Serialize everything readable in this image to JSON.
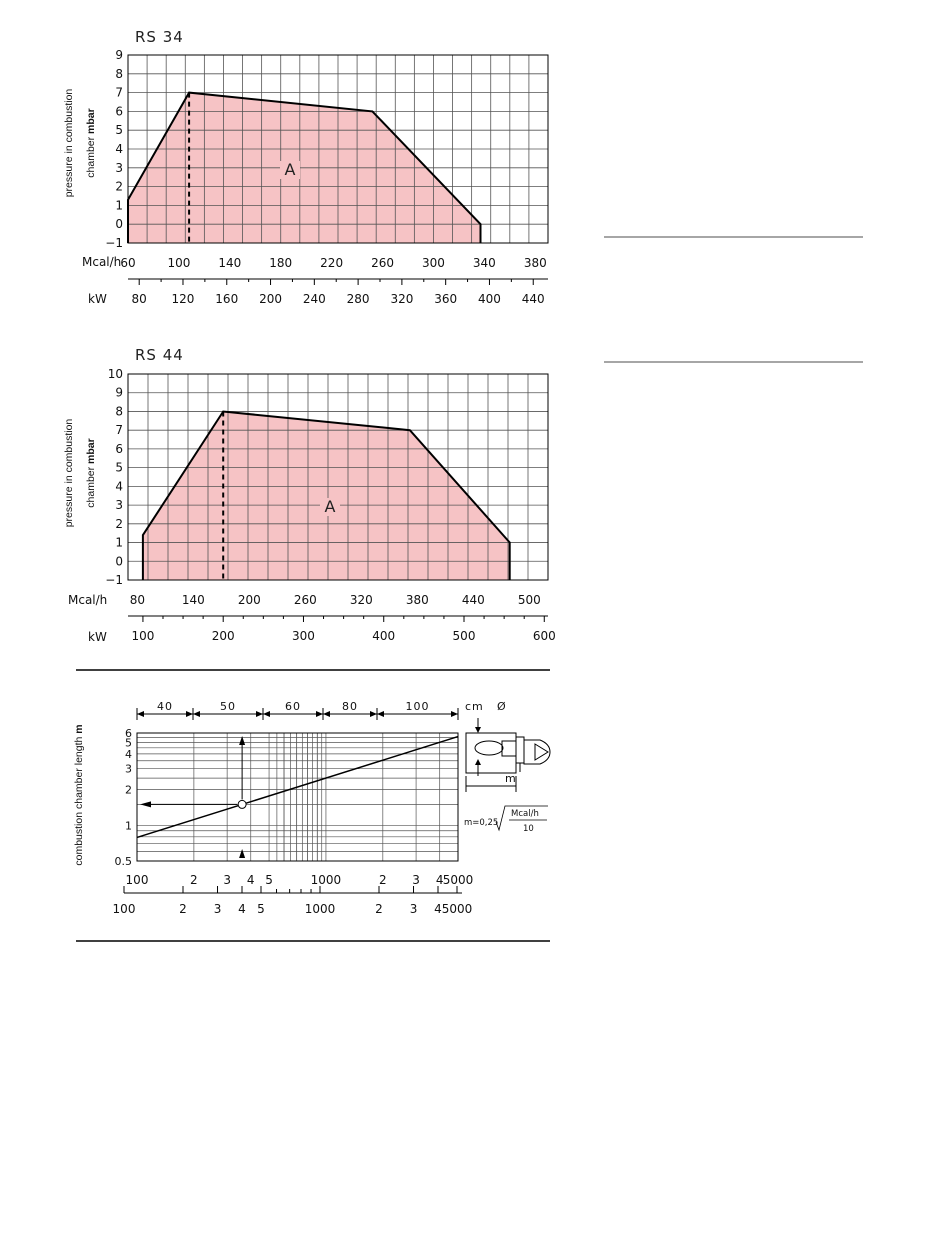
{
  "chart_data": [
    {
      "type": "area",
      "title": "RS 34",
      "ylabel_line1": "pressure in combustion",
      "ylabel_line2_prefix": "chamber ",
      "ylabel_line2_bold": "mbar",
      "xlabel_primary": "Mcal/h",
      "xlabel_secondary": "kW",
      "ylim": [
        -1,
        9
      ],
      "yticks": [
        -1,
        0,
        1,
        2,
        3,
        4,
        5,
        6,
        7,
        8,
        9
      ],
      "xlim_mcal": [
        60,
        390
      ],
      "xticks_mcal": [
        60,
        100,
        140,
        180,
        220,
        260,
        300,
        340,
        380
      ],
      "xticks_kw": [
        80,
        120,
        160,
        200,
        240,
        280,
        320,
        360,
        400,
        440
      ],
      "area_label": "A",
      "polygon_mcal": [
        [
          60,
          -1
        ],
        [
          60,
          1.3
        ],
        [
          108,
          7.0
        ],
        [
          252,
          6.0
        ],
        [
          337,
          0.0
        ],
        [
          337,
          -1
        ]
      ],
      "dashed_x_mcal": 108,
      "grid": true
    },
    {
      "type": "area",
      "title": "RS 44",
      "ylabel_line1": "pressure in combustion",
      "ylabel_line2_prefix": "chamber ",
      "ylabel_line2_bold": "mbar",
      "xlabel_primary": "Mcal/h",
      "xlabel_secondary": "kW",
      "ylim": [
        -1,
        10
      ],
      "yticks": [
        -1,
        0,
        1,
        2,
        3,
        4,
        5,
        6,
        7,
        8,
        9,
        10
      ],
      "xlim_mcal": [
        70,
        520
      ],
      "xticks_mcal": [
        80,
        140,
        200,
        260,
        320,
        380,
        440,
        500
      ],
      "xticks_kw": [
        100,
        200,
        300,
        400,
        500,
        600
      ],
      "area_label": "A",
      "polygon_mcal": [
        [
          86,
          -1
        ],
        [
          86,
          1.4
        ],
        [
          172,
          8.0
        ],
        [
          372,
          7.0
        ],
        [
          479,
          1.0
        ],
        [
          479,
          -1
        ]
      ],
      "dashed_x_mcal": 172,
      "grid": true
    },
    {
      "type": "line",
      "scale": "log-log",
      "ylabel_prefix": "combustion chamber length ",
      "ylabel_bold": "m",
      "xticks_primary": [
        "100",
        "2",
        "3",
        "4",
        "5",
        "1000",
        "2",
        "3",
        "4",
        "5000"
      ],
      "xticks_secondary": [
        "100",
        "2",
        "3",
        "4",
        "5",
        "1000",
        "2",
        "3",
        "4",
        "5000"
      ],
      "yticks": [
        "0.5",
        "1",
        "2",
        "3",
        "4",
        "5",
        "6"
      ],
      "diameter_header": "cm",
      "diameter_symbol": "Ø",
      "diameter_segments": [
        "40",
        "50",
        "60",
        "80",
        "100"
      ],
      "series": [
        {
          "x": [
            100,
            5000
          ],
          "y": [
            0.79,
            5.6
          ]
        }
      ],
      "example_point": {
        "x": 360,
        "y": 1.5
      },
      "diagram_label_m": "m",
      "formula_lhs": "m=0,25",
      "formula_num": "Mcal/h",
      "formula_den": "10"
    }
  ],
  "colors": {
    "area_fill": "#f6c3c5",
    "line": "#000000",
    "grid": "#555555"
  }
}
